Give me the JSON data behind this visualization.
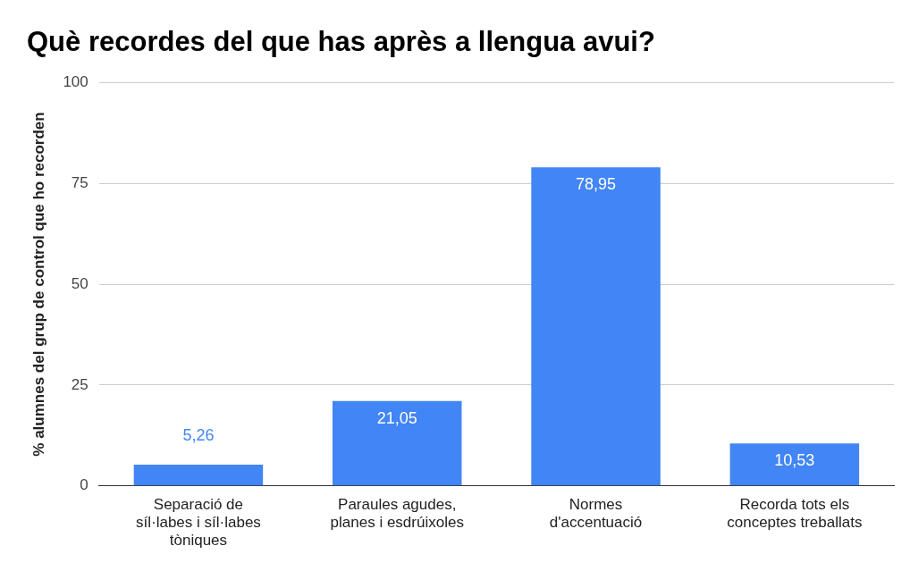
{
  "chart_data": {
    "type": "bar",
    "title": "Què recordes del que has après a llengua avui?",
    "ylabel": "% alumnes del grup de control que ho recorden",
    "categories": [
      "Separació de síl·labes i síl·labes tòniques",
      "Paraules agudes, planes i esdrúixoles",
      "Normes d'accentuació",
      "Recorda tots els conceptes treballats"
    ],
    "values": [
      5.26,
      21.05,
      78.95,
      10.53
    ],
    "value_labels": [
      "5,26",
      "21,05",
      "78,95",
      "10,53"
    ],
    "color": "#4285f4",
    "ylim": [
      0,
      100
    ],
    "yticks": [
      0,
      25,
      50,
      75,
      100
    ],
    "grid": "y",
    "legend": false
  }
}
